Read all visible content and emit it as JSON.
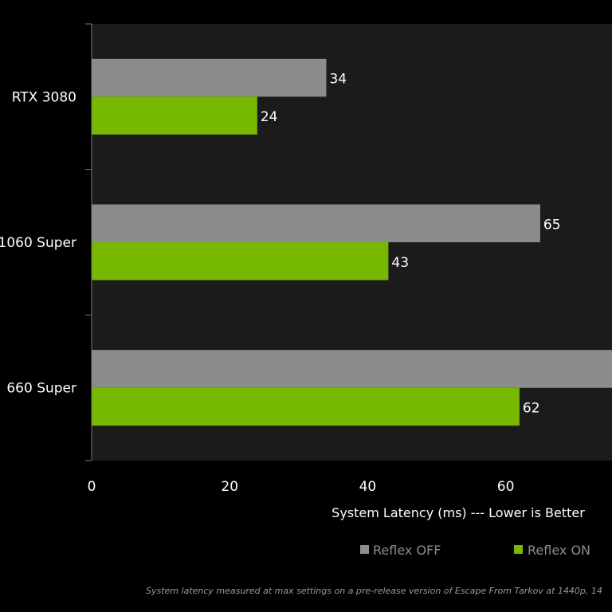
{
  "chart_data": {
    "type": "bar",
    "orientation": "horizontal",
    "categories": [
      "RTX 3080",
      "1060 Super",
      "660 Super"
    ],
    "series": [
      {
        "name": "Reflex OFF",
        "color": "#8c8c8c",
        "values": [
          34,
          65,
          null
        ]
      },
      {
        "name": "Reflex ON",
        "color": "#76b900",
        "values": [
          24,
          43,
          62
        ]
      }
    ],
    "data_labels": [
      [
        "34",
        "65",
        ""
      ],
      [
        "24",
        "43",
        "62"
      ]
    ],
    "xlabel": "System Latency (ms) --- Lower is Better",
    "xticks": [
      "0",
      "20",
      "40",
      "60"
    ],
    "xlim": [
      0,
      75
    ],
    "grid": false,
    "legend_placement": "bottom-right",
    "plot_background": "#1b1b1b",
    "footnote": "System latency measured at max settings on a pre-release version of Escape From Tarkov at 1440p, 14"
  }
}
